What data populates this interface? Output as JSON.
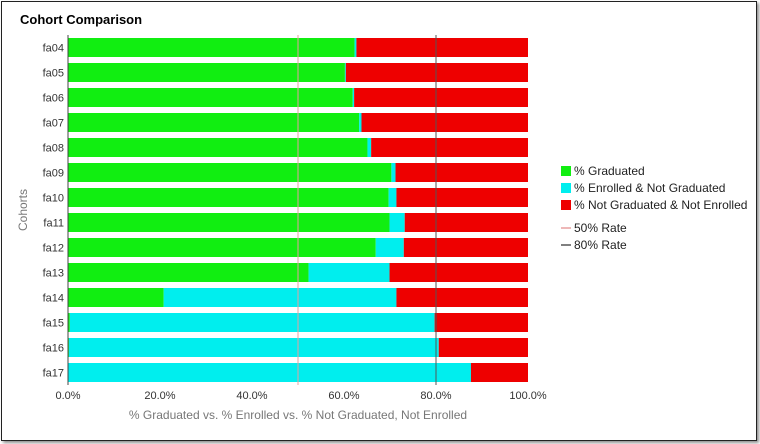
{
  "chart_data": {
    "type": "bar",
    "orientation": "horizontal",
    "stacked": true,
    "title": "Cohort Comparison",
    "xlabel": "% Graduated vs. % Enrolled vs. % Not Graduated, Not Enrolled",
    "ylabel": "Cohorts",
    "xlim": [
      0,
      100
    ],
    "x_ticks": [
      "0.0%",
      "20.0%",
      "40.0%",
      "60.0%",
      "80.0%",
      "100.0%"
    ],
    "categories": [
      "fa04",
      "fa05",
      "fa06",
      "fa07",
      "fa08",
      "fa09",
      "fa10",
      "fa11",
      "fa12",
      "fa13",
      "fa14",
      "fa15",
      "fa16",
      "fa17"
    ],
    "series": [
      {
        "name": "% Graduated",
        "color": "#11ee11",
        "values": [
          62.3,
          60.2,
          61.9,
          63.3,
          65.1,
          70.3,
          69.7,
          69.9,
          66.9,
          52.3,
          20.8,
          0.4,
          0.2,
          0.0
        ]
      },
      {
        "name": "% Enrolled & Not Graduated",
        "color": "#00eeee",
        "values": [
          0.4,
          0.2,
          0.3,
          0.5,
          0.8,
          0.9,
          1.7,
          3.3,
          6.1,
          17.6,
          50.6,
          79.3,
          80.4,
          87.6
        ]
      },
      {
        "name": "% Not Graduated & Not Enrolled",
        "color": "#ee0000",
        "values": [
          37.3,
          39.6,
          37.8,
          36.2,
          34.1,
          28.8,
          28.6,
          26.8,
          27.0,
          30.1,
          28.6,
          20.3,
          19.4,
          12.4
        ]
      }
    ],
    "reference_lines": [
      {
        "name": "50% Rate",
        "value": 50,
        "color": "#e8a0a0"
      },
      {
        "name": "80% Rate",
        "value": 80,
        "color": "#555555"
      }
    ],
    "legend_position": "right",
    "grid": false
  }
}
